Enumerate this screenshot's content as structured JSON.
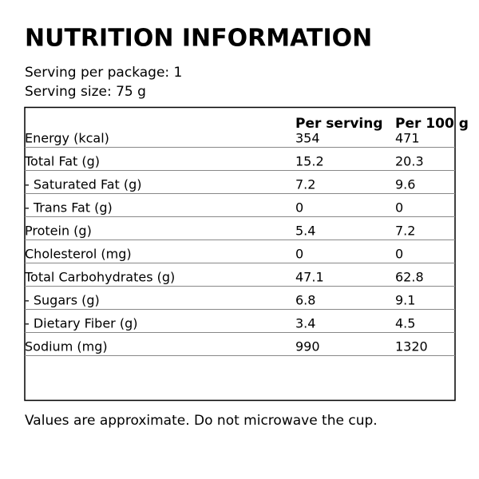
{
  "header": {
    "title": "NUTRITION INFORMATION",
    "servings_per_package": "Serving per package: 1",
    "serving_size": "Serving size: 75 g"
  },
  "table": {
    "columns": [
      "Per serving",
      "Per 100 g"
    ],
    "rows": [
      [
        "Energy (kcal)",
        "354",
        "471"
      ],
      [
        "Total Fat (g)",
        "15.2",
        "20.3"
      ],
      [
        "- Saturated Fat (g)",
        "7.2",
        "9.6"
      ],
      [
        "- Trans Fat (g)",
        "0",
        "0"
      ],
      [
        "Protein (g)",
        "5.4",
        "7.2"
      ],
      [
        "Cholesterol (mg)",
        "0",
        "0"
      ],
      [
        "Total Carbohydrates (g)",
        "47.1",
        "62.8"
      ],
      [
        "- Sugars (g)",
        "6.8",
        "9.1"
      ],
      [
        "- Dietary Fiber (g)",
        "3.4",
        "4.5"
      ],
      [
        "Sodium (mg)",
        "990",
        "1320"
      ]
    ]
  },
  "footer": {
    "note": "Values are approximate. Do not microwave the cup."
  }
}
